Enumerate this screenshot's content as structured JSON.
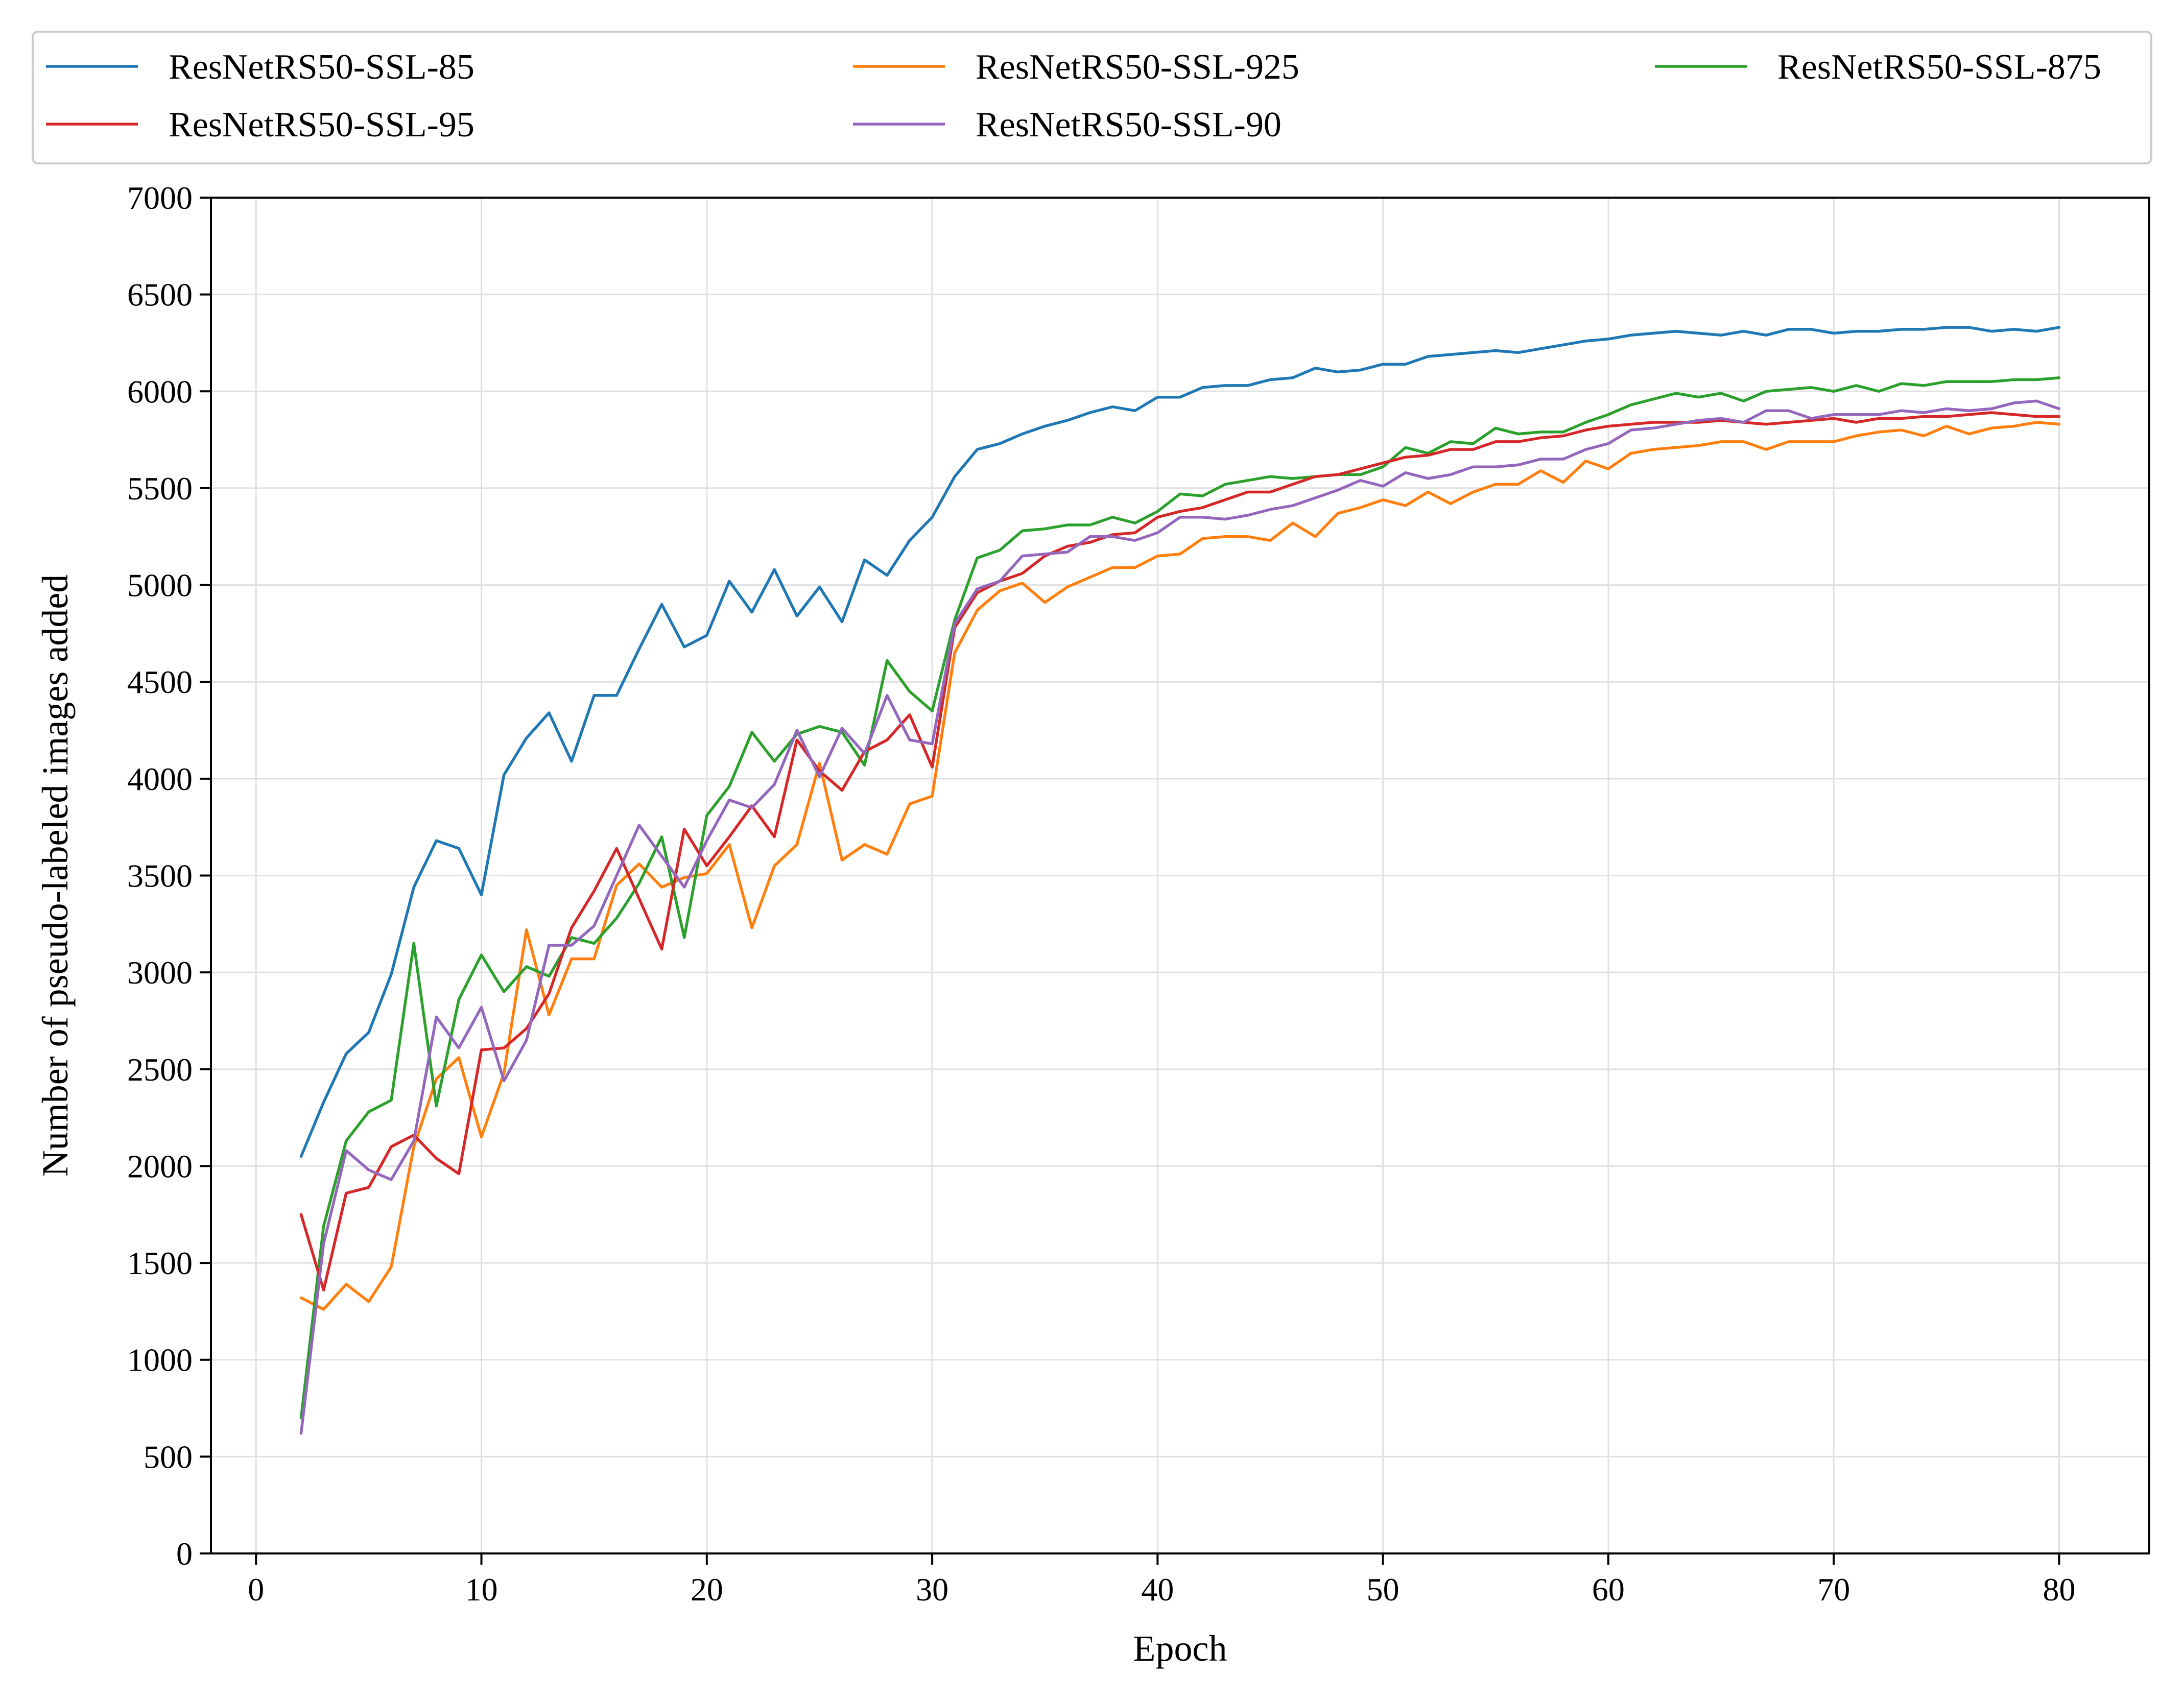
{
  "chart_data": {
    "type": "line",
    "xlabel": "Epoch",
    "ylabel": "Number of pseudo-labeled images added",
    "xlim": [
      -2,
      84
    ],
    "ylim": [
      0,
      7000
    ],
    "xticks": [
      0,
      10,
      20,
      30,
      40,
      50,
      60,
      70,
      80
    ],
    "yticks": [
      0,
      500,
      1000,
      1500,
      2000,
      2500,
      3000,
      3500,
      4000,
      4500,
      5000,
      5500,
      6000,
      6500,
      7000
    ],
    "grid": true,
    "legend_position": "top",
    "x": [
      2,
      3,
      4,
      5,
      6,
      7,
      8,
      9,
      10,
      11,
      12,
      13,
      14,
      15,
      16,
      17,
      18,
      19,
      20,
      21,
      22,
      23,
      24,
      25,
      26,
      27,
      28,
      29,
      30,
      31,
      32,
      33,
      34,
      35,
      36,
      37,
      38,
      39,
      40,
      41,
      42,
      43,
      44,
      45,
      46,
      47,
      48,
      49,
      50,
      51,
      52,
      53,
      54,
      55,
      56,
      57,
      58,
      59,
      60,
      61,
      62,
      63,
      64,
      65,
      66,
      67,
      68,
      69,
      70,
      71,
      72,
      73,
      74,
      75,
      76,
      77,
      78,
      79,
      80
    ],
    "series": [
      {
        "name": "ResNetRS50-SSL-85",
        "color": "#1f77b4",
        "values": [
          2050,
          2330,
          2580,
          2690,
          2990,
          3440,
          3680,
          3640,
          3400,
          4020,
          4210,
          4340,
          4090,
          4430,
          4430,
          4670,
          4900,
          4680,
          4740,
          5020,
          4860,
          5080,
          4840,
          4990,
          4810,
          5130,
          5050,
          5230,
          5350,
          5560,
          5700,
          5730,
          5780,
          5820,
          5850,
          5890,
          5920,
          5900,
          5970,
          5970,
          6020,
          6030,
          6030,
          6060,
          6070,
          6120,
          6100,
          6110,
          6140,
          6140,
          6180,
          6190,
          6200,
          6210,
          6200,
          6220,
          6240,
          6260,
          6270,
          6290,
          6300,
          6310,
          6300,
          6290,
          6310,
          6290,
          6320,
          6320,
          6300,
          6310,
          6310,
          6320,
          6320,
          6330,
          6330,
          6310,
          6320,
          6310,
          6330
        ]
      },
      {
        "name": "ResNetRS50-SSL-925",
        "color": "#ff7f0e",
        "values": [
          1320,
          1260,
          1390,
          1300,
          1480,
          2100,
          2450,
          2560,
          2150,
          2480,
          3220,
          2780,
          3070,
          3070,
          3450,
          3560,
          3440,
          3490,
          3510,
          3660,
          3230,
          3550,
          3660,
          4080,
          3580,
          3660,
          3610,
          3870,
          3910,
          4650,
          4870,
          4970,
          5010,
          4910,
          4990,
          5040,
          5090,
          5090,
          5150,
          5160,
          5240,
          5250,
          5250,
          5230,
          5320,
          5250,
          5370,
          5400,
          5440,
          5410,
          5480,
          5420,
          5480,
          5520,
          5520,
          5590,
          5530,
          5640,
          5600,
          5680,
          5700,
          5710,
          5720,
          5740,
          5740,
          5700,
          5740,
          5740,
          5740,
          5770,
          5790,
          5800,
          5770,
          5820,
          5780,
          5810,
          5820,
          5840,
          5830
        ]
      },
      {
        "name": "ResNetRS50-SSL-875",
        "color": "#2ca02c",
        "values": [
          700,
          1690,
          2130,
          2280,
          2340,
          3150,
          2310,
          2860,
          3090,
          2900,
          3030,
          2980,
          3180,
          3150,
          3280,
          3460,
          3700,
          3180,
          3810,
          3960,
          4240,
          4090,
          4230,
          4270,
          4240,
          4070,
          4610,
          4450,
          4350,
          4820,
          5140,
          5180,
          5280,
          5290,
          5310,
          5310,
          5350,
          5320,
          5380,
          5470,
          5460,
          5520,
          5540,
          5560,
          5550,
          5560,
          5570,
          5570,
          5610,
          5710,
          5680,
          5740,
          5730,
          5810,
          5780,
          5790,
          5790,
          5840,
          5880,
          5930,
          5960,
          5990,
          5970,
          5990,
          5950,
          6000,
          6010,
          6020,
          6000,
          6030,
          6000,
          6040,
          6030,
          6050,
          6050,
          6050,
          6060,
          6060,
          6070
        ]
      },
      {
        "name": "ResNetRS50-SSL-95",
        "color": "#d62728",
        "values": [
          1750,
          1360,
          1860,
          1890,
          2100,
          2160,
          2040,
          1960,
          2600,
          2610,
          2710,
          2890,
          3230,
          3420,
          3640,
          3380,
          3120,
          3740,
          3550,
          3700,
          3860,
          3700,
          4200,
          4040,
          3940,
          4140,
          4200,
          4330,
          4060,
          4780,
          4960,
          5020,
          5060,
          5150,
          5200,
          5220,
          5260,
          5270,
          5350,
          5380,
          5400,
          5440,
          5480,
          5480,
          5520,
          5560,
          5570,
          5600,
          5630,
          5660,
          5670,
          5700,
          5700,
          5740,
          5740,
          5760,
          5770,
          5800,
          5820,
          5830,
          5840,
          5840,
          5840,
          5850,
          5840,
          5830,
          5840,
          5850,
          5860,
          5840,
          5860,
          5860,
          5870,
          5870,
          5880,
          5890,
          5880,
          5870,
          5870
        ]
      },
      {
        "name": "ResNetRS50-SSL-90",
        "color": "#9467bd",
        "values": [
          620,
          1600,
          2080,
          1980,
          1930,
          2130,
          2770,
          2610,
          2820,
          2440,
          2650,
          3140,
          3140,
          3240,
          3500,
          3760,
          3600,
          3440,
          3680,
          3890,
          3850,
          3970,
          4250,
          4010,
          4260,
          4130,
          4430,
          4200,
          4180,
          4800,
          4980,
          5020,
          5150,
          5160,
          5170,
          5250,
          5250,
          5230,
          5270,
          5350,
          5350,
          5340,
          5360,
          5390,
          5410,
          5450,
          5490,
          5540,
          5510,
          5580,
          5550,
          5570,
          5610,
          5610,
          5620,
          5650,
          5650,
          5700,
          5730,
          5800,
          5810,
          5830,
          5850,
          5860,
          5840,
          5900,
          5900,
          5860,
          5880,
          5880,
          5880,
          5900,
          5890,
          5910,
          5900,
          5910,
          5940,
          5950,
          5910
        ]
      }
    ]
  }
}
